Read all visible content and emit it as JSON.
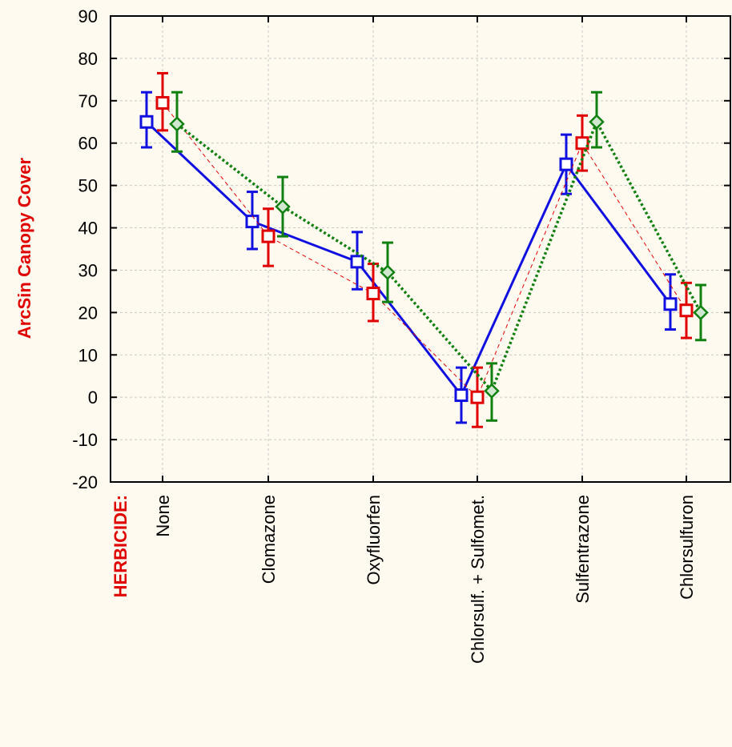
{
  "chart_data": {
    "type": "line",
    "ylabel": "ArcSin Canopy Cover",
    "xlabel": "HERBICIDE:",
    "ylim": [
      -20,
      90
    ],
    "yticks": [
      -20,
      -10,
      0,
      10,
      20,
      30,
      40,
      50,
      60,
      70,
      80,
      90
    ],
    "categories": [
      "None",
      "Clomazone",
      "Oxyfluorfen",
      "Chlorsulf. + Sulfomet.",
      "Sulfentrazone",
      "Chlorsulfuron"
    ],
    "grid": true,
    "series": [
      {
        "color": "#1010e0",
        "line_style": "solid",
        "marker": "square",
        "values": [
          65,
          41.5,
          32,
          0.5,
          55,
          22
        ],
        "lower": [
          59,
          35,
          25.5,
          -6,
          48,
          16
        ],
        "upper": [
          72,
          48.5,
          39,
          7,
          62,
          29
        ]
      },
      {
        "color": "#e00000",
        "line_style": "dashed",
        "marker": "square",
        "values": [
          69.5,
          38,
          24.5,
          0,
          60,
          20.5
        ],
        "lower": [
          63,
          31,
          18,
          -7,
          53.5,
          14
        ],
        "upper": [
          76.5,
          44.5,
          31.5,
          7,
          66.5,
          27
        ]
      },
      {
        "color": "#108010",
        "line_style": "dotted",
        "marker": "diamond",
        "values": [
          64.5,
          45,
          29.5,
          1.5,
          65,
          20
        ],
        "lower": [
          58,
          38,
          22.5,
          -5.5,
          59,
          13.5
        ],
        "upper": [
          72,
          52,
          36.5,
          8,
          72,
          26.5
        ]
      }
    ]
  }
}
